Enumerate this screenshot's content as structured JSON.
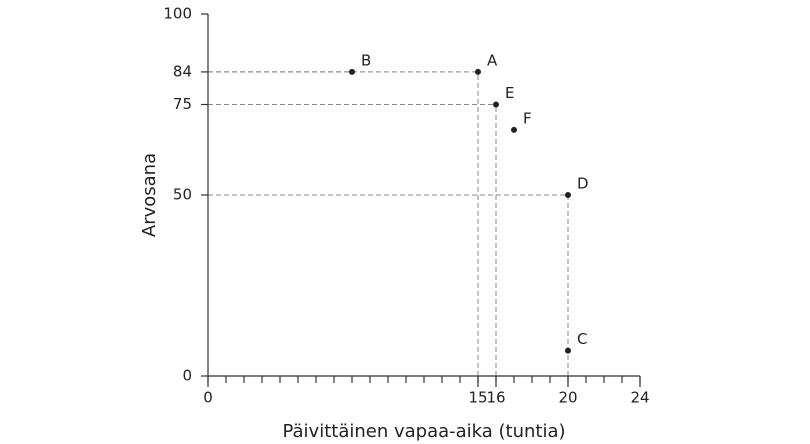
{
  "chart_data": {
    "type": "scatter",
    "x_label": "Päivittäinen vapaa-aika (tuntia)",
    "y_label": "Arvosana",
    "xlim": [
      0,
      24
    ],
    "xticks": [
      0,
      15,
      16,
      20,
      24
    ],
    "x_minor_step": 1,
    "ylim": [
      0,
      100
    ],
    "yticks": [
      0,
      50,
      75,
      84,
      100
    ],
    "color": "#222222",
    "points": [
      {
        "label": "A",
        "x": 15,
        "y": 84
      },
      {
        "label": "B",
        "x": 8,
        "y": 84
      },
      {
        "label": "C",
        "x": 20,
        "y": 7
      },
      {
        "label": "D",
        "x": 20,
        "y": 50
      },
      {
        "label": "E",
        "x": 16,
        "y": 75
      },
      {
        "label": "F",
        "x": 17,
        "y": 68
      }
    ]
  }
}
